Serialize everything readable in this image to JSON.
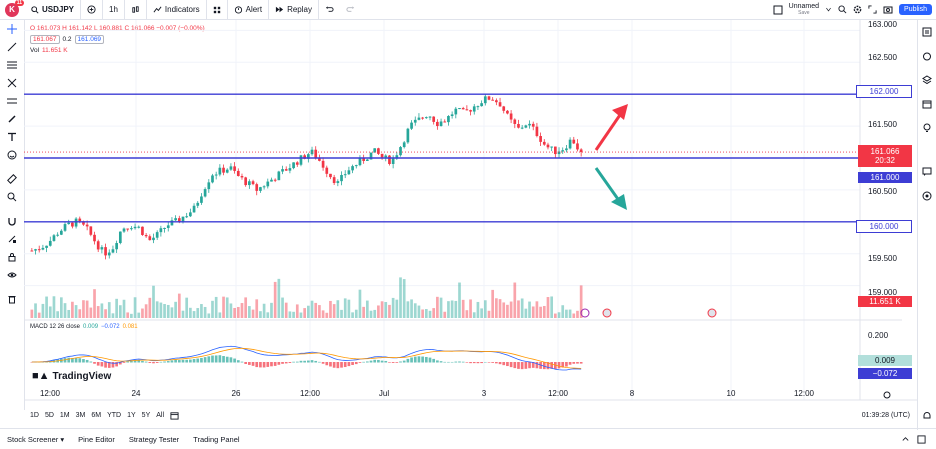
{
  "toolbar": {
    "logo_letter": "K",
    "logo_badge": "11",
    "symbol": "USDJPY",
    "interval": "1h",
    "indicators": "Indicators",
    "alert": "Alert",
    "replay": "Replay",
    "layout_name": "Unnamed",
    "layout_sub": "Save",
    "publish": "Publish"
  },
  "legend": {
    "ohlc": "O 161.073  H 161.142  L 160.881  C 161.066  −0.007 (−0.00%)",
    "bid": "161.067",
    "spread": "0.2",
    "ask": "161.069",
    "vol_label": "Vol",
    "vol_value": "11.651 K",
    "macd_label": "MACD 12 26 close",
    "macd_v1": "0.009",
    "macd_v2": "−0.072",
    "macd_v3": "0.081"
  },
  "price_axis": {
    "ticks": [
      "163.000",
      "162.500",
      "161.500",
      "160.500",
      "159.500",
      "159.000"
    ],
    "line_162": "162.000",
    "line_161": "161.000",
    "line_160": "160.000",
    "current_price": "161.066",
    "countdown": "20:32",
    "volume_label": "11.651 K",
    "macd_tick": "0.200",
    "macd_val1": "0.009",
    "macd_val2": "−0.072"
  },
  "time_axis": [
    "12:00",
    "24",
    "26",
    "12:00",
    "Jul",
    "3",
    "12:00",
    "8",
    "10",
    "12:00"
  ],
  "timeframes": [
    "1D",
    "5D",
    "1M",
    "3M",
    "6M",
    "YTD",
    "1Y",
    "5Y",
    "All"
  ],
  "time_utc": "01:39:28 (UTC)",
  "bottom_tabs": [
    "Stock Screener",
    "Pine Editor",
    "Strategy Tester",
    "Trading Panel"
  ],
  "brand": "TradingView",
  "colors": {
    "up": "#26a69a",
    "down": "#f23645",
    "line": "#3d3dd4",
    "accent": "#2962ff"
  },
  "chart_data": {
    "type": "candlestick",
    "symbol": "USDJPY",
    "interval": "1h",
    "horizontal_lines": [
      162.0,
      161.0,
      160.0
    ],
    "ylim": [
      158.9,
      163.1
    ],
    "close_path": [
      159.55,
      159.6,
      159.7,
      159.85,
      159.95,
      160.0,
      159.9,
      159.7,
      159.5,
      159.6,
      159.9,
      159.95,
      159.9,
      159.7,
      159.8,
      159.95,
      160.0,
      160.1,
      160.2,
      160.5,
      160.75,
      160.8,
      160.85,
      160.7,
      160.6,
      160.5,
      160.6,
      160.7,
      160.8,
      160.9,
      161.0,
      161.1,
      160.95,
      160.75,
      160.6,
      160.8,
      160.9,
      161.0,
      161.1,
      161.0,
      160.95,
      161.2,
      161.5,
      161.6,
      161.7,
      161.55,
      161.6,
      161.75,
      161.7,
      161.8,
      161.9,
      161.95,
      161.85,
      161.6,
      161.45,
      161.55,
      161.4,
      161.2,
      161.1,
      161.15,
      161.3,
      161.066
    ]
  }
}
